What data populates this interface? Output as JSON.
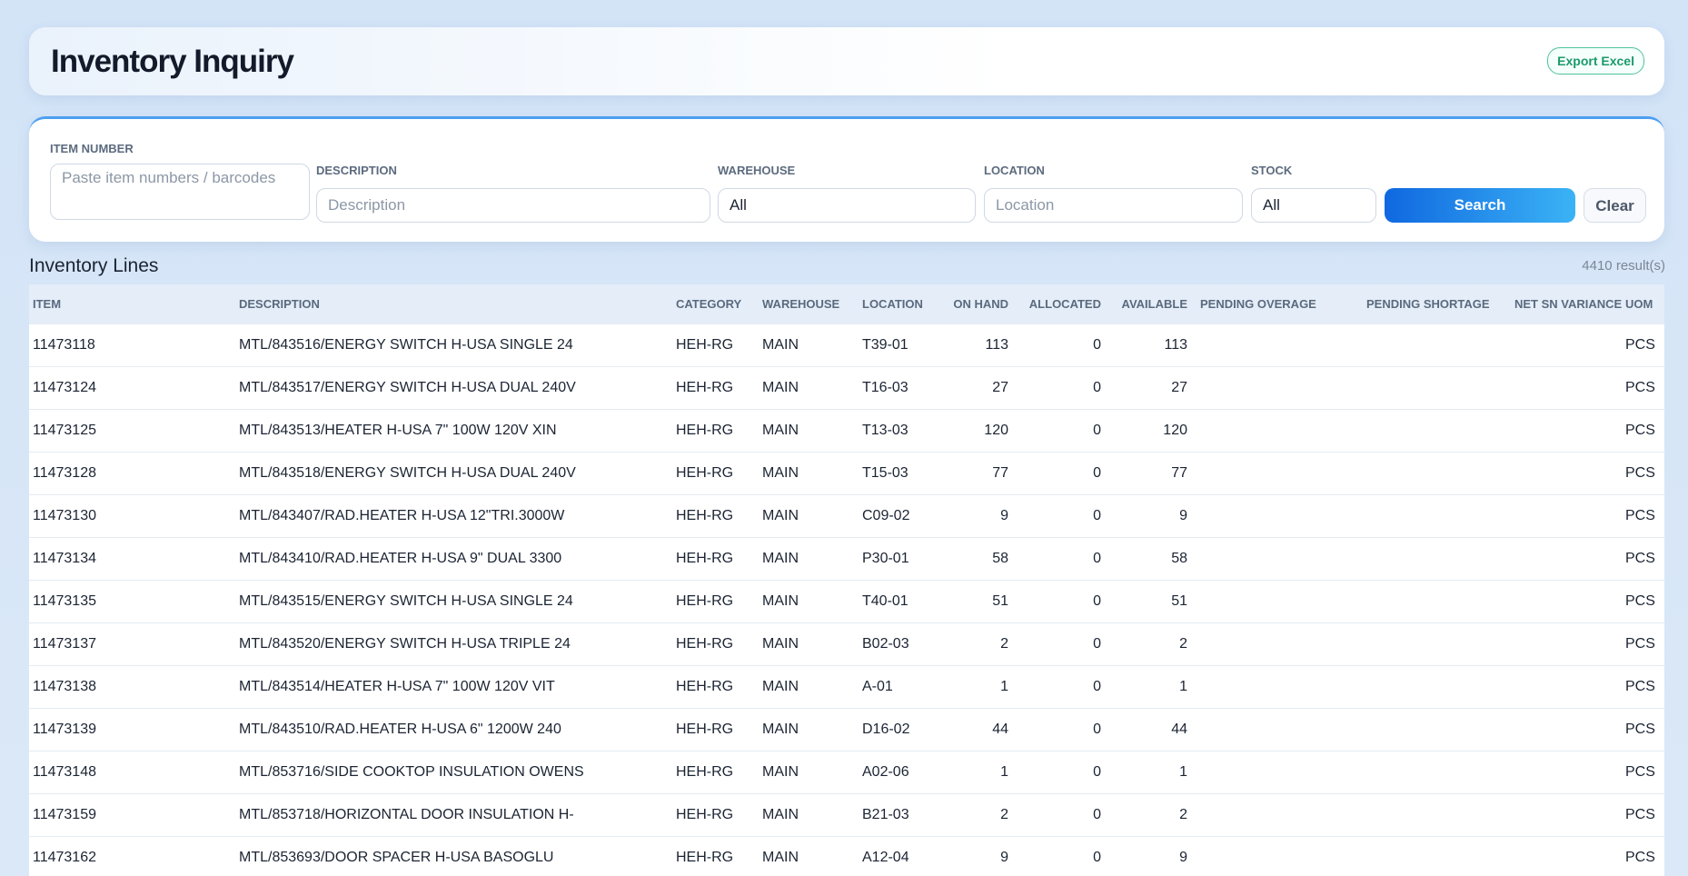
{
  "header": {
    "title": "Inventory Inquiry",
    "export": "Export Excel"
  },
  "filters": {
    "item_number": {
      "label": "ITEM NUMBER",
      "placeholder": "Paste item numbers / barcodes"
    },
    "description": {
      "label": "DESCRIPTION",
      "placeholder": "Description"
    },
    "warehouse": {
      "label": "WAREHOUSE",
      "value": "All"
    },
    "location": {
      "label": "LOCATION",
      "placeholder": "Location"
    },
    "stock": {
      "label": "STOCK",
      "value": "All"
    },
    "search": "Search",
    "clear": "Clear"
  },
  "table": {
    "title": "Inventory Lines",
    "count": "4410 result(s)",
    "columns": [
      "ITEM",
      "DESCRIPTION",
      "CATEGORY",
      "WAREHOUSE",
      "LOCATION",
      "ON HAND",
      "ALLOCATED",
      "AVAILABLE",
      "PENDING OVERAGE",
      "PENDING SHORTAGE",
      "NET SN VARIANCE",
      "UOM"
    ],
    "rows": [
      {
        "item": "11473118",
        "description": "MTL/843516/ENERGY SWITCH H-USA SINGLE 24",
        "category": "HEH-RG",
        "warehouse": "MAIN",
        "location": "T39-01",
        "on_hand": 113,
        "allocated": 0,
        "available": 113,
        "uom": "PCS"
      },
      {
        "item": "11473124",
        "description": "MTL/843517/ENERGY SWITCH H-USA DUAL 240V",
        "category": "HEH-RG",
        "warehouse": "MAIN",
        "location": "T16-03",
        "on_hand": 27,
        "allocated": 0,
        "available": 27,
        "uom": "PCS"
      },
      {
        "item": "11473125",
        "description": "MTL/843513/HEATER H-USA 7\" 100W 120V XIN",
        "category": "HEH-RG",
        "warehouse": "MAIN",
        "location": "T13-03",
        "on_hand": 120,
        "allocated": 0,
        "available": 120,
        "uom": "PCS"
      },
      {
        "item": "11473128",
        "description": "MTL/843518/ENERGY SWITCH H-USA DUAL 240V",
        "category": "HEH-RG",
        "warehouse": "MAIN",
        "location": "T15-03",
        "on_hand": 77,
        "allocated": 0,
        "available": 77,
        "uom": "PCS"
      },
      {
        "item": "11473130",
        "description": "MTL/843407/RAD.HEATER H-USA 12\"TRI.3000W",
        "category": "HEH-RG",
        "warehouse": "MAIN",
        "location": "C09-02",
        "on_hand": 9,
        "allocated": 0,
        "available": 9,
        "uom": "PCS"
      },
      {
        "item": "11473134",
        "description": "MTL/843410/RAD.HEATER H-USA 9\" DUAL 3300",
        "category": "HEH-RG",
        "warehouse": "MAIN",
        "location": "P30-01",
        "on_hand": 58,
        "allocated": 0,
        "available": 58,
        "uom": "PCS"
      },
      {
        "item": "11473135",
        "description": "MTL/843515/ENERGY SWITCH H-USA SINGLE 24",
        "category": "HEH-RG",
        "warehouse": "MAIN",
        "location": "T40-01",
        "on_hand": 51,
        "allocated": 0,
        "available": 51,
        "uom": "PCS"
      },
      {
        "item": "11473137",
        "description": "MTL/843520/ENERGY SWITCH H-USA TRIPLE 24",
        "category": "HEH-RG",
        "warehouse": "MAIN",
        "location": "B02-03",
        "on_hand": 2,
        "allocated": 0,
        "available": 2,
        "uom": "PCS"
      },
      {
        "item": "11473138",
        "description": "MTL/843514/HEATER H-USA 7\" 100W 120V VIT",
        "category": "HEH-RG",
        "warehouse": "MAIN",
        "location": "A-01",
        "on_hand": 1,
        "allocated": 0,
        "available": 1,
        "uom": "PCS"
      },
      {
        "item": "11473139",
        "description": "MTL/843510/RAD.HEATER H-USA 6\" 1200W 240",
        "category": "HEH-RG",
        "warehouse": "MAIN",
        "location": "D16-02",
        "on_hand": 44,
        "allocated": 0,
        "available": 44,
        "uom": "PCS"
      },
      {
        "item": "11473148",
        "description": "MTL/853716/SIDE COOKTOP INSULATION OWENS",
        "category": "HEH-RG",
        "warehouse": "MAIN",
        "location": "A02-06",
        "on_hand": 1,
        "allocated": 0,
        "available": 1,
        "uom": "PCS"
      },
      {
        "item": "11473159",
        "description": "MTL/853718/HORIZONTAL DOOR INSULATION H-",
        "category": "HEH-RG",
        "warehouse": "MAIN",
        "location": "B21-03",
        "on_hand": 2,
        "allocated": 0,
        "available": 2,
        "uom": "PCS"
      },
      {
        "item": "11473162",
        "description": "MTL/853693/DOOR SPACER H-USA BASOGLU",
        "category": "HEH-RG",
        "warehouse": "MAIN",
        "location": "A12-04",
        "on_hand": 9,
        "allocated": 0,
        "available": 9,
        "uom": "PCS"
      }
    ]
  }
}
